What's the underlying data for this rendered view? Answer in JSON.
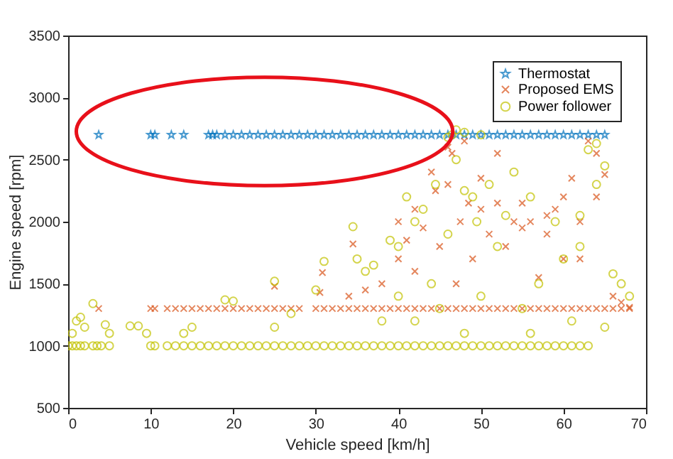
{
  "chart_data": {
    "type": "scatter",
    "xlabel": "Vehicle speed [km/h]",
    "ylabel": "Engine speed [rpm]",
    "xlim": [
      0,
      70
    ],
    "ylim": [
      500,
      3500
    ],
    "xticks": [
      0,
      10,
      20,
      30,
      40,
      50,
      60,
      70
    ],
    "yticks": [
      500,
      1000,
      1500,
      2000,
      2500,
      3000,
      3500
    ],
    "grid": false,
    "legend": "top right",
    "series": [
      {
        "name": "Thermostat",
        "color": "#0072bd",
        "marker": "star",
        "x": [
          3.7,
          10,
          10.5,
          12.5,
          14,
          17,
          17.5,
          18,
          19,
          20,
          21,
          22,
          23,
          24,
          25,
          26,
          27,
          28,
          29,
          30,
          31,
          32,
          33,
          34,
          35,
          36,
          37,
          38,
          39,
          40,
          41,
          42,
          43,
          44,
          45,
          46,
          47,
          48,
          49,
          50,
          51,
          52,
          53,
          54,
          55,
          56,
          57,
          58,
          59,
          60,
          61,
          62,
          63,
          64,
          65
        ],
        "values": [
          2700,
          2700,
          2700,
          2700,
          2700,
          2700,
          2700,
          2700,
          2700,
          2700,
          2700,
          2700,
          2700,
          2700,
          2700,
          2700,
          2700,
          2700,
          2700,
          2700,
          2700,
          2700,
          2700,
          2700,
          2700,
          2700,
          2700,
          2700,
          2700,
          2700,
          2700,
          2700,
          2700,
          2700,
          2700,
          2700,
          2700,
          2700,
          2700,
          2700,
          2700,
          2700,
          2700,
          2700,
          2700,
          2700,
          2700,
          2700,
          2700,
          2700,
          2700,
          2700,
          2700,
          2700,
          2700
        ]
      },
      {
        "name": "Proposed EMS",
        "color": "#d95319",
        "marker": "cross",
        "x": [
          3.7,
          10,
          10.5,
          12,
          13,
          14,
          15,
          16,
          17,
          18,
          19,
          20,
          21,
          22,
          23,
          24,
          25,
          26,
          27,
          28,
          30,
          31,
          32,
          33,
          34,
          35,
          36,
          37,
          38,
          39,
          40,
          41,
          42,
          43,
          44,
          45,
          46,
          47,
          48,
          49,
          50,
          51,
          52,
          53,
          54,
          55,
          56,
          57,
          58,
          59,
          60,
          61,
          62,
          63,
          64,
          65,
          66,
          67,
          68,
          25,
          30.5,
          30.8,
          34.5,
          34,
          36,
          38,
          40,
          40,
          41,
          42,
          42,
          43,
          44,
          44.5,
          45,
          46,
          46,
          46.5,
          47,
          47.5,
          48,
          48.5,
          49,
          50,
          50,
          51,
          52,
          52,
          53,
          54,
          55,
          55,
          56,
          57,
          58,
          58,
          59,
          60,
          60,
          61,
          62,
          62,
          63,
          64,
          65,
          66,
          67,
          68,
          64
        ],
        "values": [
          1300,
          1300,
          1300,
          1300,
          1300,
          1300,
          1300,
          1300,
          1300,
          1300,
          1300,
          1300,
          1300,
          1300,
          1300,
          1300,
          1300,
          1300,
          1300,
          1300,
          1300,
          1300,
          1300,
          1300,
          1300,
          1300,
          1300,
          1300,
          1300,
          1300,
          1300,
          1300,
          1300,
          1300,
          1300,
          1300,
          1300,
          1300,
          1300,
          1300,
          1300,
          1300,
          1300,
          1300,
          1300,
          1300,
          1300,
          1300,
          1300,
          1300,
          1300,
          1300,
          1300,
          1300,
          1300,
          1300,
          1300,
          1300,
          1300,
          1480,
          1430,
          1590,
          1820,
          1400,
          1450,
          1500,
          2000,
          1700,
          1850,
          1600,
          2100,
          1950,
          2400,
          2250,
          1800,
          2600,
          2300,
          2550,
          1500,
          2000,
          2650,
          2150,
          1700,
          2100,
          2350,
          1900,
          2550,
          2150,
          1800,
          2000,
          1950,
          2150,
          2000,
          1550,
          1900,
          2050,
          2100,
          2200,
          1700,
          2350,
          2000,
          1700,
          2650,
          2200,
          2380,
          1400,
          1350,
          1310,
          2550
        ]
      },
      {
        "name": "Power follower",
        "color": "#c2c200",
        "marker": "circle",
        "x": [
          0,
          0.5,
          1,
          1.5,
          2,
          3,
          3.5,
          4,
          5,
          10,
          10.5,
          12,
          13,
          14,
          15,
          16,
          17,
          18,
          19,
          20,
          21,
          22,
          23,
          24,
          25,
          26,
          27,
          28,
          29,
          30,
          31,
          32,
          33,
          34,
          35,
          36,
          37,
          38,
          39,
          40,
          41,
          42,
          43,
          44,
          45,
          46,
          47,
          48,
          49,
          50,
          51,
          52,
          53,
          54,
          55,
          56,
          57,
          58,
          59,
          60,
          61,
          62,
          63,
          0.5,
          1,
          1.5,
          3,
          2,
          4.5,
          5,
          7.5,
          8.5,
          9.5,
          14,
          15,
          19,
          20,
          25,
          25,
          27,
          30,
          31,
          34.5,
          35,
          36,
          37,
          38,
          39,
          40,
          40,
          41,
          42,
          42,
          43,
          44,
          44.5,
          45,
          46,
          46.5,
          47,
          48,
          48,
          49,
          49.5,
          50,
          50,
          51,
          52,
          53,
          54,
          55,
          56,
          56,
          57,
          59,
          60,
          61,
          62,
          62,
          63,
          64,
          65,
          65,
          66,
          67,
          68,
          64,
          47,
          48,
          46
        ],
        "values": [
          1000,
          1000,
          1000,
          1000,
          1000,
          1000,
          1000,
          1000,
          1000,
          1000,
          1000,
          1000,
          1000,
          1000,
          1000,
          1000,
          1000,
          1000,
          1000,
          1000,
          1000,
          1000,
          1000,
          1000,
          1000,
          1000,
          1000,
          1000,
          1000,
          1000,
          1000,
          1000,
          1000,
          1000,
          1000,
          1000,
          1000,
          1000,
          1000,
          1000,
          1000,
          1000,
          1000,
          1000,
          1000,
          1000,
          1000,
          1000,
          1000,
          1000,
          1000,
          1000,
          1000,
          1000,
          1000,
          1000,
          1000,
          1000,
          1000,
          1000,
          1000,
          1000,
          1000,
          1100,
          1200,
          1230,
          1340,
          1150,
          1170,
          1100,
          1160,
          1160,
          1100,
          1100,
          1150,
          1370,
          1360,
          1520,
          1150,
          1260,
          1450,
          1680,
          1960,
          1700,
          1600,
          1650,
          1200,
          1850,
          1800,
          1400,
          2200,
          2000,
          1200,
          2100,
          1500,
          2300,
          1300,
          1900,
          2700,
          2500,
          2250,
          1100,
          2200,
          2000,
          2700,
          1400,
          2300,
          1800,
          2050,
          2400,
          1300,
          2200,
          1100,
          1500,
          2000,
          1700,
          1200,
          1800,
          2050,
          2580,
          2300,
          2450,
          1150,
          1580,
          1500,
          1400,
          2630,
          2740,
          2720,
          2680
        ]
      }
    ]
  }
}
